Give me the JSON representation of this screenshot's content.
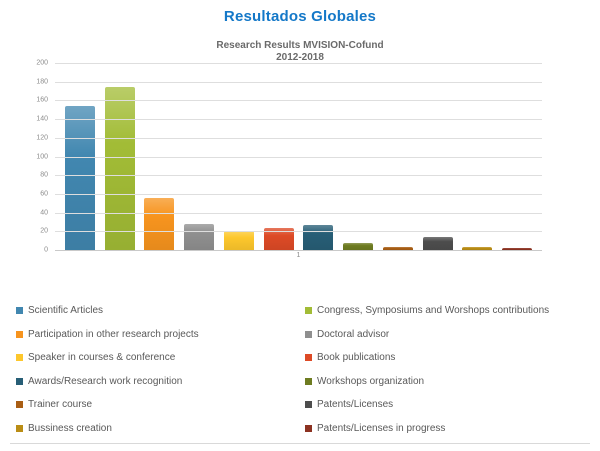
{
  "page": {
    "title": "Resultados Globales",
    "title_color": "#1478c8"
  },
  "chart_data": {
    "type": "bar",
    "title": "Research Results MVISION-Cofund",
    "subtitle": "2012-2018",
    "x_category_label": "1",
    "xlabel": "",
    "ylabel": "",
    "ylim": [
      0,
      200
    ],
    "yticks": [
      0,
      20,
      40,
      60,
      80,
      100,
      120,
      140,
      160,
      180,
      200
    ],
    "grid": true,
    "legend_position": "bottom-two-columns",
    "series": [
      {
        "name": "Scientific Articles",
        "value": 154,
        "color": "#4187b0"
      },
      {
        "name": "Congress, Symposiums and Worshops contributions",
        "value": 174,
        "color": "#a2bc36"
      },
      {
        "name": "Participation in other research projects",
        "value": 56,
        "color": "#f7941e"
      },
      {
        "name": "Doctoral advisor",
        "value": 28,
        "color": "#8f8f8f"
      },
      {
        "name": "Speaker in courses & conference",
        "value": 20,
        "color": "#fdc72c"
      },
      {
        "name": "Book publications",
        "value": 24,
        "color": "#dd4a26"
      },
      {
        "name": "Awards/Research work recognition",
        "value": 27,
        "color": "#275e76"
      },
      {
        "name": "Workshops organization",
        "value": 8,
        "color": "#6e7c21"
      },
      {
        "name": "Trainer course",
        "value": 3,
        "color": "#a95e14"
      },
      {
        "name": "Patents/Licenses",
        "value": 14,
        "color": "#4d4d4d"
      },
      {
        "name": "Bussiness creation",
        "value": 3,
        "color": "#ba8d15"
      },
      {
        "name": "Patents/Licenses in progress",
        "value": 2,
        "color": "#8c3221"
      }
    ]
  }
}
